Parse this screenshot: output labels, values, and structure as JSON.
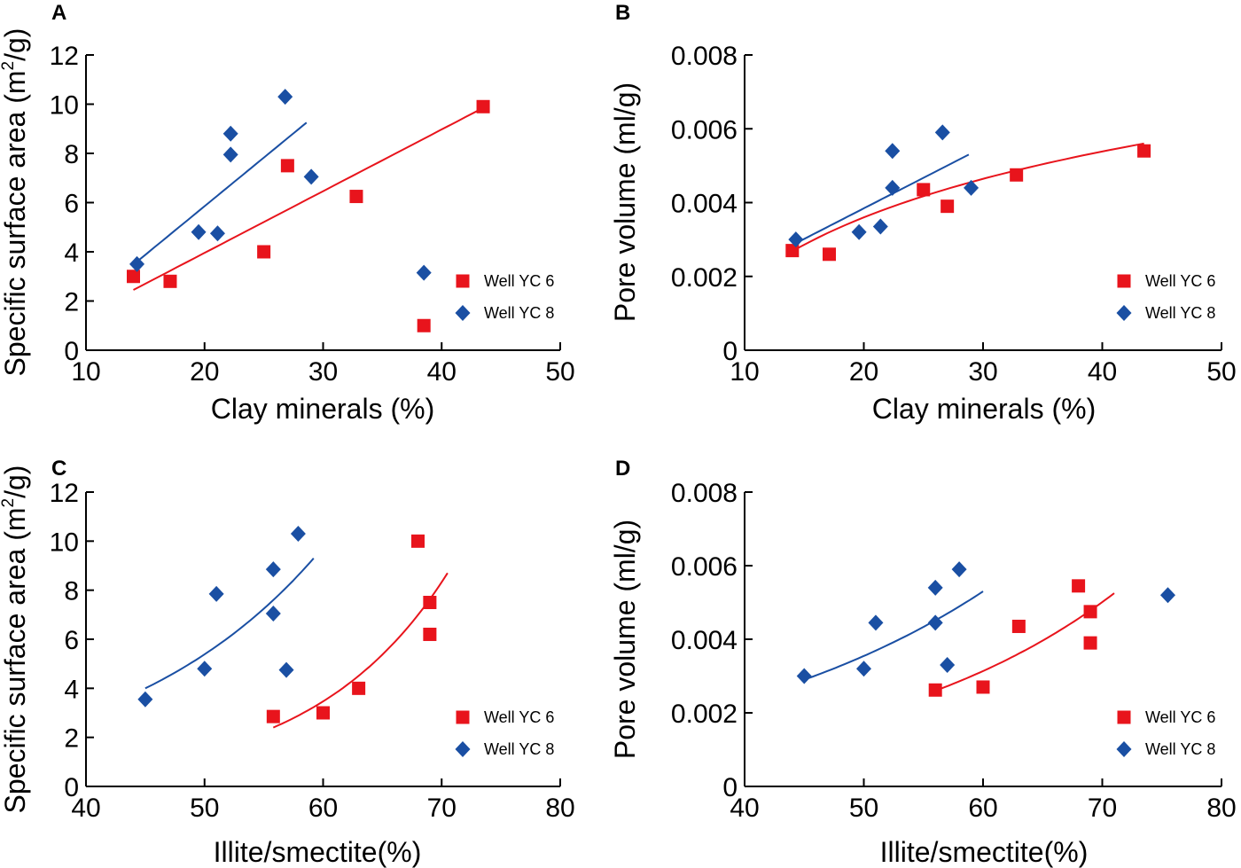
{
  "colors": {
    "yc6": "#e8141c",
    "yc8": "#1a4fa3"
  },
  "chart_data": [
    {
      "panel": "A",
      "type": "scatter",
      "xlabel": "Clay minerals (%)",
      "ylabel_main": "Specific surface area (m",
      "ylabel_sup": "2",
      "ylabel_end": "/g)",
      "xlim": [
        10,
        50
      ],
      "ylim": [
        0,
        12
      ],
      "xticks": [
        "10",
        "20",
        "30",
        "40",
        "50"
      ],
      "yticks": [
        "0",
        "2",
        "4",
        "6",
        "8",
        "10",
        "12"
      ],
      "legend": [
        "Well YC 6",
        "Well YC 8"
      ],
      "series": [
        {
          "name": "Well YC 6",
          "marker": "square",
          "color": "#e8141c",
          "points": [
            [
              14,
              3.0
            ],
            [
              17.1,
              2.8
            ],
            [
              25,
              4.0
            ],
            [
              27,
              7.5
            ],
            [
              32.8,
              6.25
            ],
            [
              38.5,
              1.0
            ],
            [
              43.5,
              9.9
            ]
          ],
          "trend": {
            "kind": "linear",
            "x0": 14,
            "y0": 2.45,
            "x1": 43.5,
            "y1": 9.85
          }
        },
        {
          "name": "Well YC 8",
          "marker": "diamond",
          "color": "#1a4fa3",
          "points": [
            [
              14.3,
              3.5
            ],
            [
              19.5,
              4.8
            ],
            [
              21.1,
              4.75
            ],
            [
              22.2,
              8.8
            ],
            [
              22.2,
              7.95
            ],
            [
              26.8,
              10.3
            ],
            [
              29,
              7.05
            ],
            [
              38.5,
              3.15
            ]
          ],
          "trend": {
            "kind": "linear",
            "x0": 14.3,
            "y0": 3.6,
            "x1": 28.6,
            "y1": 9.25
          }
        }
      ]
    },
    {
      "panel": "B",
      "type": "scatter",
      "xlabel": "Clay minerals (%)",
      "ylabel_main": "Pore volume (ml/g)",
      "ylabel_sup": "",
      "ylabel_end": "",
      "xlim": [
        10,
        50
      ],
      "ylim": [
        0,
        0.008
      ],
      "xticks": [
        "10",
        "20",
        "30",
        "40",
        "50"
      ],
      "yticks": [
        "0",
        "0.002",
        "0.004",
        "0.006",
        "0.008"
      ],
      "legend": [
        "Well YC 6",
        "Well YC 8"
      ],
      "series": [
        {
          "name": "Well YC 6",
          "marker": "square",
          "color": "#e8141c",
          "points": [
            [
              14,
              0.0027
            ],
            [
              17.1,
              0.0026
            ],
            [
              25,
              0.00435
            ],
            [
              27,
              0.0039
            ],
            [
              32.8,
              0.00475
            ],
            [
              43.5,
              0.0054
            ]
          ],
          "trend": {
            "kind": "log",
            "x0": 14,
            "y0": 0.00268,
            "x1": 43.5,
            "y1": 0.0056
          }
        },
        {
          "name": "Well YC 8",
          "marker": "diamond",
          "color": "#1a4fa3",
          "points": [
            [
              14.3,
              0.003
            ],
            [
              19.6,
              0.0032
            ],
            [
              21.4,
              0.00335
            ],
            [
              22.4,
              0.0054
            ],
            [
              22.4,
              0.0044
            ],
            [
              26.6,
              0.0059
            ],
            [
              29,
              0.0044
            ]
          ],
          "trend": {
            "kind": "linear",
            "x0": 14.3,
            "y0": 0.0029,
            "x1": 28.8,
            "y1": 0.0053
          }
        }
      ]
    },
    {
      "panel": "C",
      "type": "scatter",
      "xlabel": "Illite/smectite(%)",
      "ylabel_main": "Specific surface area (m",
      "ylabel_sup": "2",
      "ylabel_end": "/g)",
      "xlim": [
        40,
        80
      ],
      "ylim": [
        0,
        12
      ],
      "xticks": [
        "40",
        "50",
        "60",
        "70",
        "80"
      ],
      "yticks": [
        "0",
        "2",
        "4",
        "6",
        "8",
        "10",
        "12"
      ],
      "legend": [
        "Well YC 6",
        "Well YC 8"
      ],
      "series": [
        {
          "name": "Well YC 6",
          "marker": "square",
          "color": "#e8141c",
          "points": [
            [
              55.8,
              2.85
            ],
            [
              60,
              3.0
            ],
            [
              63,
              4.0
            ],
            [
              68,
              10.0
            ],
            [
              69,
              7.5
            ],
            [
              69,
              6.2
            ]
          ],
          "trend": {
            "kind": "exp",
            "x0": 55.8,
            "y0": 2.4,
            "x1": 70.5,
            "y1": 8.7
          }
        },
        {
          "name": "Well YC 8",
          "marker": "diamond",
          "color": "#1a4fa3",
          "points": [
            [
              45,
              3.55
            ],
            [
              50,
              4.8
            ],
            [
              51,
              7.85
            ],
            [
              55.8,
              8.85
            ],
            [
              55.8,
              7.05
            ],
            [
              56.9,
              4.75
            ],
            [
              57.9,
              10.3
            ]
          ],
          "trend": {
            "kind": "exp",
            "x0": 45,
            "y0": 4.0,
            "x1": 59.2,
            "y1": 9.3
          }
        }
      ]
    },
    {
      "panel": "D",
      "type": "scatter",
      "xlabel": "Illite/smectite(%)",
      "ylabel_main": "Pore volume (ml/g)",
      "ylabel_sup": "",
      "ylabel_end": "",
      "xlim": [
        40,
        80
      ],
      "ylim": [
        0,
        0.008
      ],
      "xticks": [
        "40",
        "50",
        "60",
        "70",
        "80"
      ],
      "yticks": [
        "0",
        "0.002",
        "0.004",
        "0.006",
        "0.008"
      ],
      "legend": [
        "Well YC 6",
        "Well YC 8"
      ],
      "series": [
        {
          "name": "Well YC 6",
          "marker": "square",
          "color": "#e8141c",
          "points": [
            [
              56,
              0.00262
            ],
            [
              60,
              0.0027
            ],
            [
              63,
              0.00435
            ],
            [
              68,
              0.00545
            ],
            [
              69,
              0.00475
            ],
            [
              69,
              0.0039
            ]
          ],
          "trend": {
            "kind": "exp",
            "x0": 56,
            "y0": 0.0026,
            "x1": 71,
            "y1": 0.00525
          }
        },
        {
          "name": "Well YC 8",
          "marker": "diamond",
          "color": "#1a4fa3",
          "points": [
            [
              45,
              0.003
            ],
            [
              50,
              0.0032
            ],
            [
              51,
              0.00445
            ],
            [
              56,
              0.0054
            ],
            [
              56,
              0.00445
            ],
            [
              57,
              0.0033
            ],
            [
              58,
              0.0059
            ],
            [
              75.5,
              0.0052
            ]
          ],
          "trend": {
            "kind": "exp",
            "x0": 45,
            "y0": 0.0029,
            "x1": 60,
            "y1": 0.0053
          }
        }
      ]
    }
  ]
}
